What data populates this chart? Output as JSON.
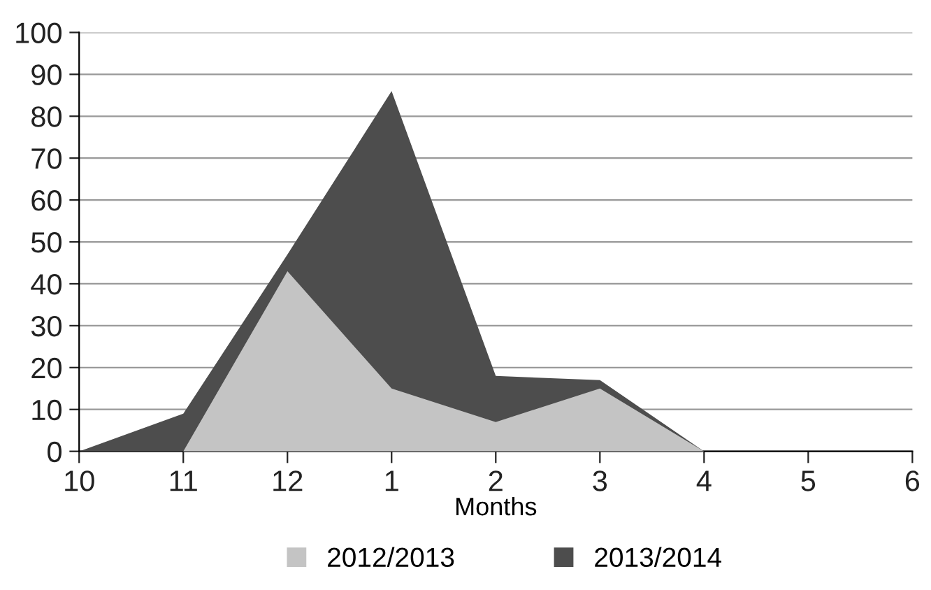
{
  "chart_data": {
    "type": "area",
    "xlabel": "Months",
    "categories": [
      "10",
      "11",
      "12",
      "1",
      "2",
      "3",
      "4",
      "5",
      "6"
    ],
    "series": [
      {
        "name": "2012/2013",
        "color": "#c4c4c4",
        "values": [
          0,
          0,
          43,
          15,
          7,
          15,
          0,
          0,
          0
        ]
      },
      {
        "name": "2013/2014",
        "color": "#4d4d4d",
        "values": [
          0,
          9,
          47,
          86,
          18,
          17,
          0,
          0,
          0
        ]
      }
    ],
    "ylim": [
      0,
      100
    ],
    "yticks": [
      0,
      10,
      20,
      30,
      40,
      50,
      60,
      70,
      80,
      90,
      100
    ],
    "grid": "y",
    "legend": "bottom"
  }
}
